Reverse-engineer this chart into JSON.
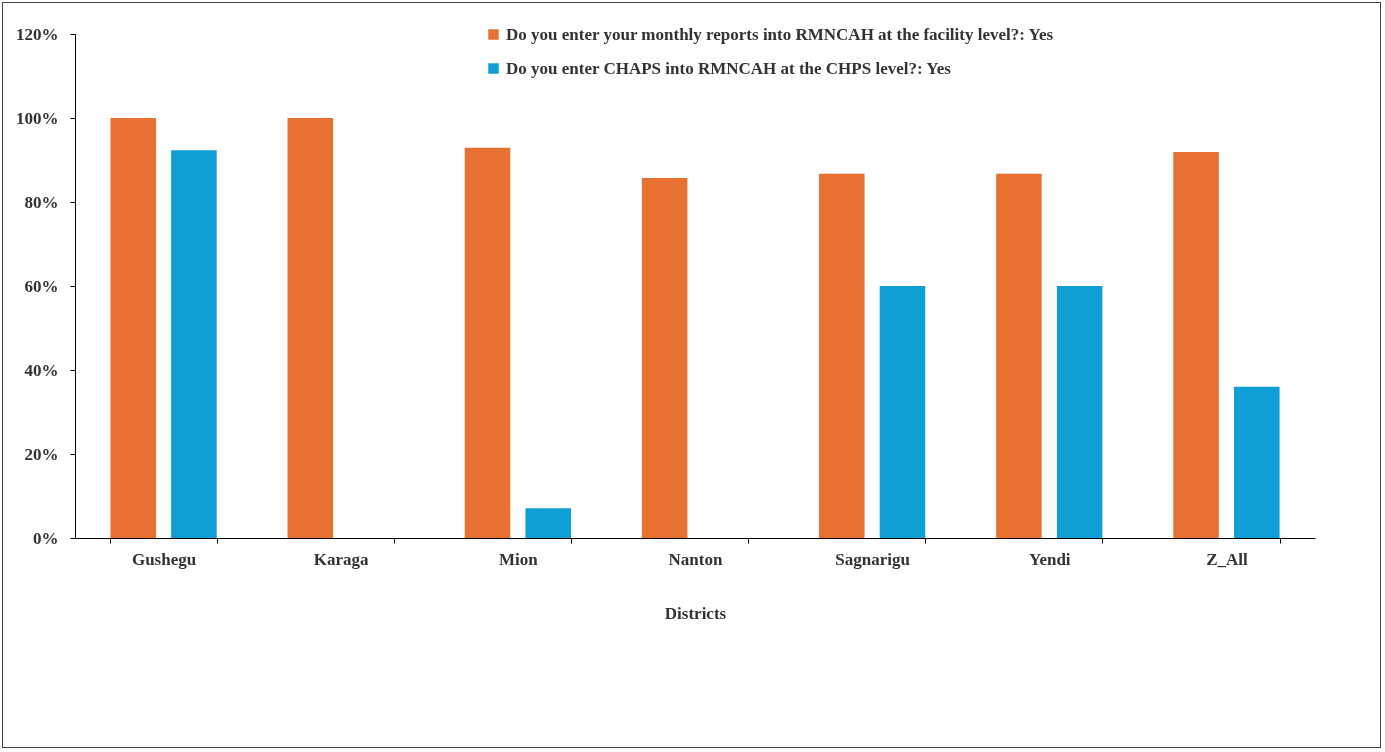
{
  "chart_data": {
    "type": "bar",
    "xlabel": "Districts",
    "categories": [
      "Gushegu",
      "Karaga",
      "Mion",
      "Nanton",
      "Sagnarigu",
      "Yendi",
      "Z_All"
    ],
    "series": [
      {
        "name": "Do you enter your monthly reports into RMNCAH at the facility level?: Yes",
        "color": "#e87132",
        "values": [
          100,
          100,
          92.9,
          85.7,
          86.7,
          86.7,
          91.9
        ]
      },
      {
        "name": "Do you enter CHAPS into RMNCAH at the CHPS level?: Yes",
        "color": "#0f9ed5",
        "values": [
          92.3,
          0,
          7.1,
          0,
          60,
          60,
          36
        ]
      }
    ],
    "ylim": [
      0,
      120
    ],
    "yticks": [
      {
        "value": 0,
        "label": "0%"
      },
      {
        "value": 20,
        "label": "20%"
      },
      {
        "value": 40,
        "label": "40%"
      },
      {
        "value": 60,
        "label": "60%"
      },
      {
        "value": 80,
        "label": "80%"
      },
      {
        "value": 100,
        "label": "100%"
      },
      {
        "value": 120,
        "label": "120%"
      }
    ],
    "grid": false,
    "legend": "top"
  }
}
